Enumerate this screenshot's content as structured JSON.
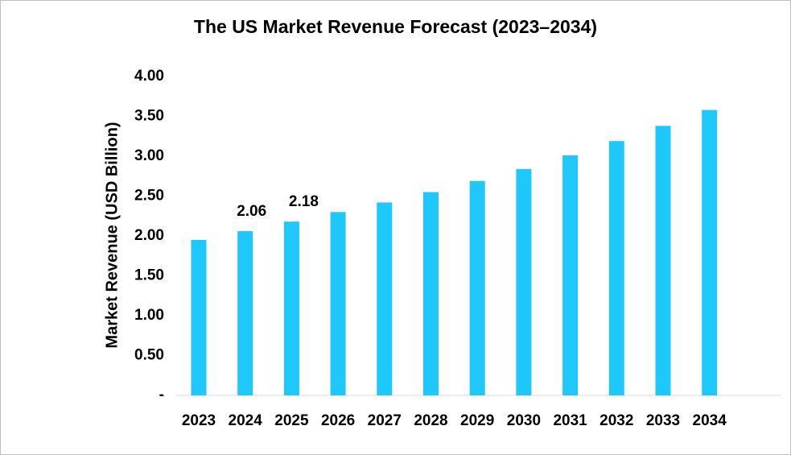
{
  "chart_data": {
    "type": "bar",
    "title": "The US Market Revenue Forecast (2023–2034)",
    "xlabel": "",
    "ylabel": "Market Revenue (USD Billion)",
    "categories": [
      "2023",
      "2024",
      "2025",
      "2026",
      "2027",
      "2028",
      "2029",
      "2030",
      "2031",
      "2032",
      "2033",
      "2034"
    ],
    "values": [
      1.95,
      2.06,
      2.18,
      2.3,
      2.42,
      2.55,
      2.69,
      2.84,
      3.01,
      3.19,
      3.38,
      3.58
    ],
    "data_labels": [
      {
        "category": "2024",
        "text": "2.06"
      },
      {
        "category": "2025",
        "text": "2.18"
      }
    ],
    "ylim": [
      0,
      4
    ],
    "yticks": [
      {
        "value": 0,
        "label": "-"
      },
      {
        "value": 0.5,
        "label": "0.50"
      },
      {
        "value": 1.0,
        "label": "1.00"
      },
      {
        "value": 1.5,
        "label": "1.50"
      },
      {
        "value": 2.0,
        "label": "2.00"
      },
      {
        "value": 2.5,
        "label": "2.50"
      },
      {
        "value": 3.0,
        "label": "3.00"
      },
      {
        "value": 3.5,
        "label": "3.50"
      },
      {
        "value": 4.0,
        "label": "4.00"
      }
    ],
    "grid": false,
    "legend": "none",
    "bar_color": "#1ec8fa"
  }
}
